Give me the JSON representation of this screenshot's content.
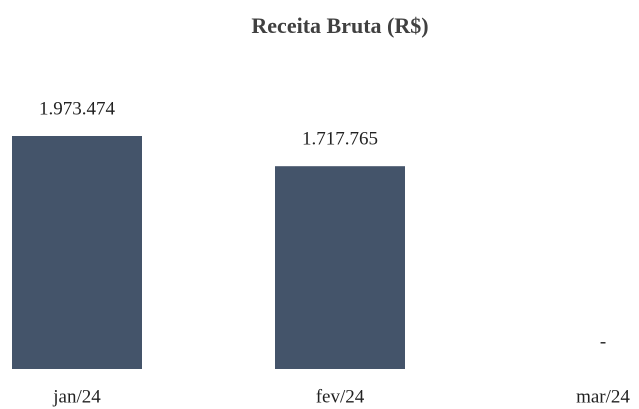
{
  "chart_data": {
    "type": "bar",
    "title": "Receita Bruta (R$)",
    "categories": [
      "jan/24",
      "fev/24",
      "mar/24"
    ],
    "values": [
      1973474,
      1717765,
      0
    ],
    "value_labels": [
      "1.973.474",
      "1.717.765",
      "-"
    ],
    "color": "#44546a"
  }
}
